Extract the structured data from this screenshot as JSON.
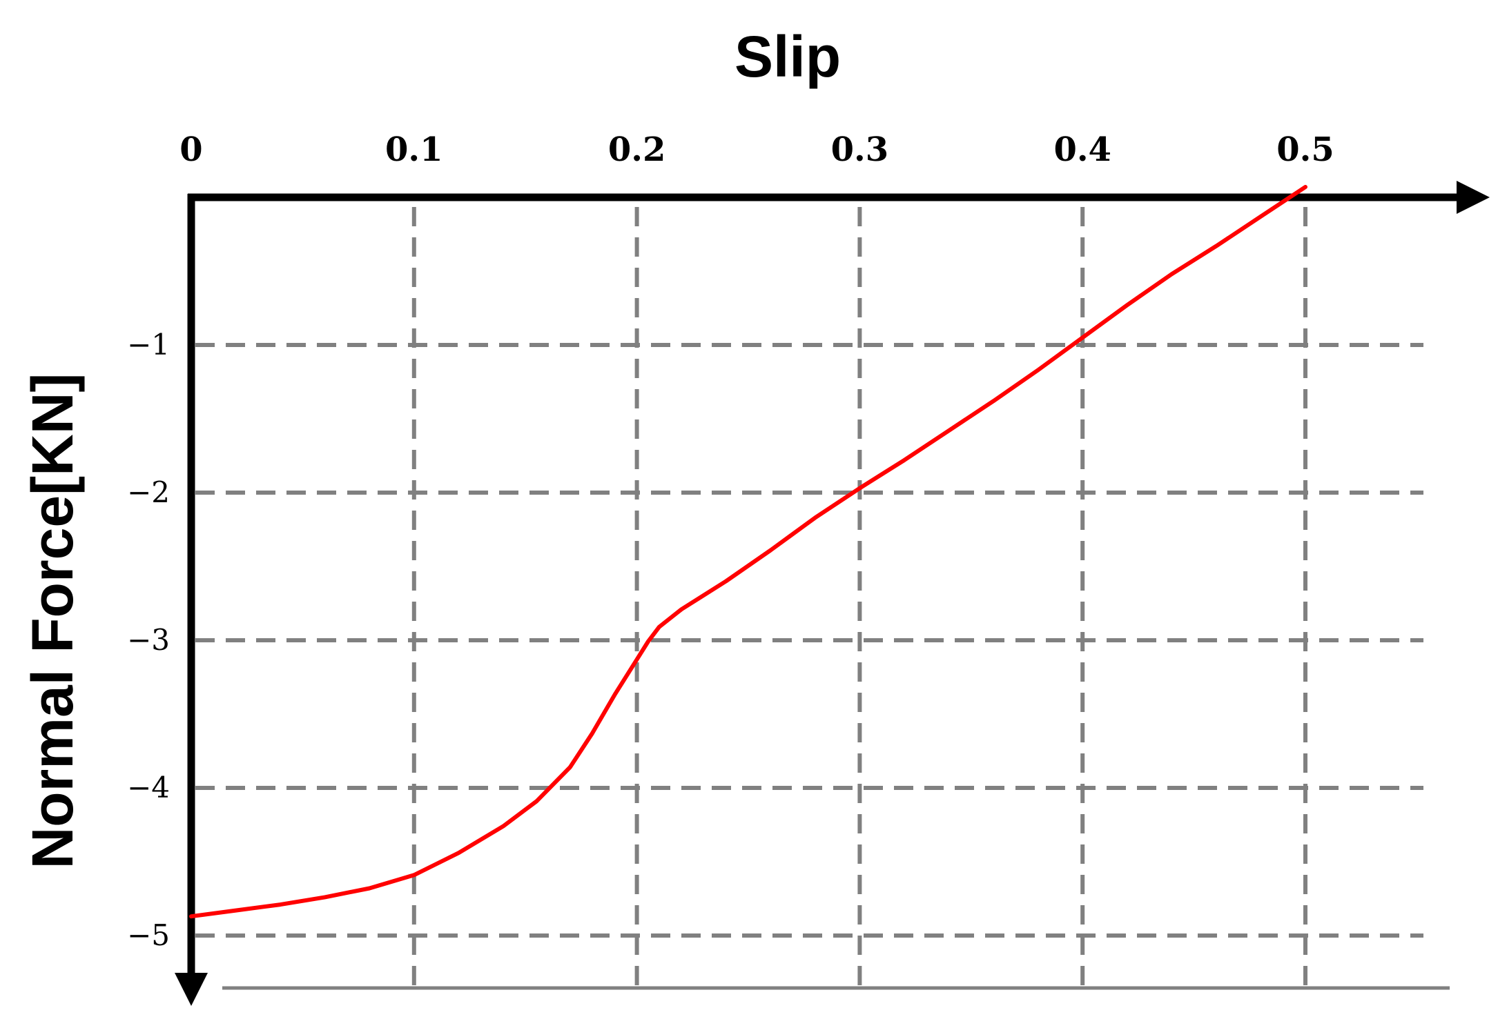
{
  "chart_data": {
    "type": "line",
    "title": "",
    "xlabel": "Slip",
    "ylabel": "Normal Force[KN]",
    "xlim": [
      0,
      0.56
    ],
    "ylim": [
      -5.2,
      0.1
    ],
    "x_ticks": [
      0,
      0.1,
      0.2,
      0.3,
      0.4,
      0.5
    ],
    "x_tick_labels": [
      "0",
      "0.1",
      "0.2",
      "0.3",
      "0.4",
      "0.5"
    ],
    "y_ticks": [
      -1,
      -2,
      -3,
      -4,
      -5
    ],
    "y_tick_labels": [
      "−1",
      "−2",
      "−3",
      "−4",
      "−5"
    ],
    "x_axis_position": "top",
    "y_axis_direction": "down",
    "grid": true,
    "legend": "none",
    "colors": {
      "series": "#ff0000",
      "grid": "#808080",
      "axis": "#000000"
    },
    "series": [
      {
        "x": [
          0.0,
          0.02,
          0.04,
          0.06,
          0.08,
          0.1,
          0.12,
          0.14,
          0.155,
          0.17,
          0.18,
          0.19,
          0.2,
          0.205,
          0.21,
          0.22,
          0.24,
          0.26,
          0.28,
          0.3,
          0.32,
          0.34,
          0.36,
          0.38,
          0.4,
          0.42,
          0.44,
          0.46,
          0.48,
          0.5
        ],
        "y": [
          -4.87,
          -4.83,
          -4.79,
          -4.74,
          -4.68,
          -4.59,
          -4.44,
          -4.26,
          -4.09,
          -3.86,
          -3.63,
          -3.37,
          -3.13,
          -3.01,
          -2.91,
          -2.79,
          -2.6,
          -2.39,
          -2.17,
          -1.97,
          -1.78,
          -1.58,
          -1.38,
          -1.17,
          -0.95,
          -0.73,
          -0.52,
          -0.33,
          -0.13,
          0.07
        ]
      }
    ]
  }
}
